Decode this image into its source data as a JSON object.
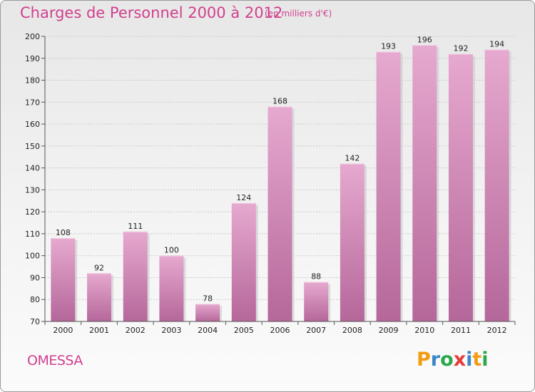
{
  "header": {
    "title": "Charges de Personnel 2000 à 2012",
    "subtitle": "(en milliers d'€)"
  },
  "footer": {
    "commune": "OMESSA",
    "brand": "Proxiti",
    "brand_letters": [
      "P",
      "r",
      "o",
      "x",
      "i",
      "t",
      "i"
    ],
    "brand_colors": [
      "#f39c12",
      "#3a86c8",
      "#2aa84a",
      "#e63a3a",
      "#3a86c8",
      "#f39c12",
      "#2aa84a"
    ]
  },
  "colors": {
    "bar_top": "#e6a9cf",
    "bar_bottom": "#b5679a",
    "title": "#d1408e",
    "grid": "#c9c9c9"
  },
  "chart_data": {
    "type": "bar",
    "categories": [
      "2000",
      "2001",
      "2002",
      "2003",
      "2004",
      "2005",
      "2006",
      "2007",
      "2008",
      "2009",
      "2010",
      "2011",
      "2012"
    ],
    "values": [
      108,
      92,
      111,
      100,
      78,
      124,
      168,
      88,
      142,
      193,
      196,
      192,
      194
    ],
    "ylim": [
      70,
      200
    ],
    "yticks": [
      70,
      80,
      90,
      100,
      110,
      120,
      130,
      140,
      150,
      160,
      170,
      180,
      190,
      200
    ],
    "grid": true
  }
}
